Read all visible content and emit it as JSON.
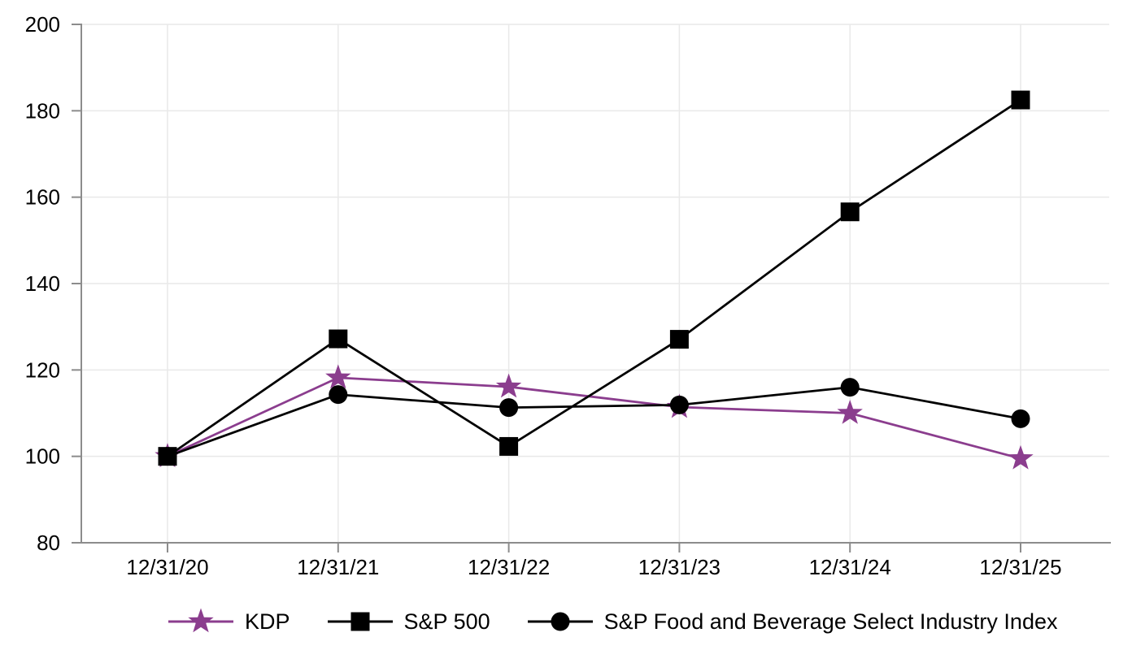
{
  "chart_data": {
    "type": "line",
    "x": [
      "12/31/20",
      "12/31/21",
      "12/31/22",
      "12/31/23",
      "12/31/24",
      "12/31/25"
    ],
    "series": [
      {
        "name": "KDP",
        "marker": "star",
        "color": "#8B3D8E",
        "values": [
          100,
          118.2,
          116.1,
          111.4,
          110.0,
          99.5
        ]
      },
      {
        "name": "S&P 500",
        "marker": "square",
        "color": "#000000",
        "values": [
          100,
          127.2,
          102.3,
          127.1,
          156.6,
          182.5
        ]
      },
      {
        "name": "S&P Food and Beverage Select Industry Index",
        "marker": "circle",
        "color": "#000000",
        "values": [
          100,
          114.3,
          111.3,
          111.9,
          116.0,
          108.7
        ]
      }
    ],
    "ylim": [
      80,
      200
    ],
    "yticks": [
      80,
      100,
      120,
      140,
      160,
      180,
      200
    ],
    "grid": true,
    "legend_position": "bottom"
  },
  "colors": {
    "grid": "#E9E9E9",
    "axis": "#8C8C8C",
    "text": "#000000",
    "background": "#FFFFFF"
  }
}
